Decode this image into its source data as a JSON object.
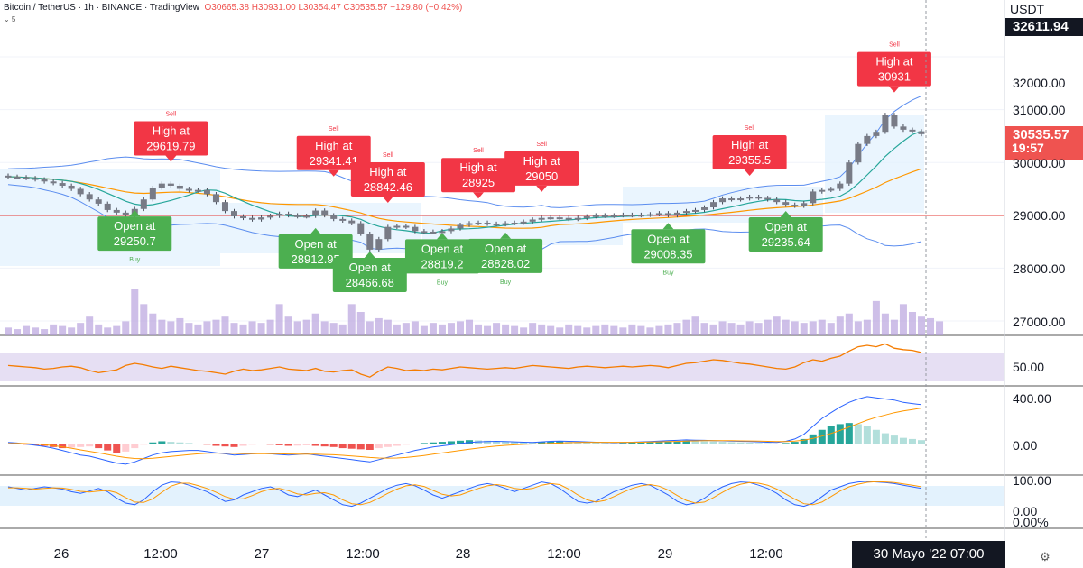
{
  "header": {
    "symbol": "Bitcoin / TetherUS · 1h · BINANCE · TradingView",
    "ohlc_label": "O30665.38 H30931.00 L30354.47 C30535.57 −129.80 (−0.42%)",
    "sub": "⌄ 5"
  },
  "axis": {
    "unit": "USDT",
    "top_price": "32611.94",
    "last_price": "30535.57",
    "countdown": "19:57",
    "price_ticks": [
      "32000.00",
      "31000.00",
      "30000.00",
      "29000.00",
      "28000.00",
      "27000.00"
    ],
    "rsi_tick": "50.00",
    "macd_ticks": [
      "400.00",
      "0.00"
    ],
    "stoch_ticks": [
      "100.00",
      "0.00",
      "0.00%"
    ],
    "x_ticks": [
      "26",
      "12:00",
      "27",
      "12:00",
      "28",
      "12:00",
      "29",
      "12:00"
    ],
    "crosshair_label": "30 Mayo '22   07:00"
  },
  "colors": {
    "up": "#26a69a",
    "down": "#ef5350",
    "neutral_candle": "#787b86",
    "sell_label": "#f23645",
    "buy_label": "#4caf50",
    "volume": "#b39ddb",
    "rsi_line": "#f57c00",
    "macd_line": "#2962ff",
    "signal_line": "#ff9800",
    "support": "#e53935",
    "band": "#5b8def"
  },
  "chart_data": {
    "type": "line",
    "ylim": [
      26700,
      32700
    ],
    "x_ticks": [
      "26",
      "12:00",
      "27",
      "12:00",
      "28",
      "12:00",
      "29",
      "12:00"
    ],
    "signals": [
      {
        "kind": "sell",
        "text": "High at",
        "value": "29619.79",
        "price": 29619.79,
        "tag": "Sell",
        "bar": 18
      },
      {
        "kind": "buy",
        "text": "Open at",
        "value": "29250.7",
        "price": 29250.7,
        "tag": "Buy",
        "bar": 14
      },
      {
        "kind": "sell",
        "text": "High at",
        "value": "29341.41",
        "price": 29341.41,
        "tag": "Sell",
        "bar": 36
      },
      {
        "kind": "buy",
        "text": "Open at",
        "value": "28912.95",
        "price": 28912.95,
        "tag": "",
        "bar": 34
      },
      {
        "kind": "sell",
        "text": "High at",
        "value": "28842.46",
        "price": 28842.46,
        "tag": "Sell",
        "bar": 42
      },
      {
        "kind": "buy",
        "text": "Open at",
        "value": "28466.68",
        "price": 28466.68,
        "tag": "",
        "bar": 40
      },
      {
        "kind": "sell",
        "text": "High at",
        "value": "28925",
        "price": 28925,
        "tag": "Sell",
        "bar": 52
      },
      {
        "kind": "buy",
        "text": "Open at",
        "value": "28819.2",
        "price": 28819.2,
        "tag": "Buy",
        "bar": 48
      },
      {
        "kind": "sell",
        "text": "High at",
        "value": "29050",
        "price": 29050,
        "tag": "Sell",
        "bar": 59
      },
      {
        "kind": "buy",
        "text": "Open at",
        "value": "28828.02",
        "price": 28828.02,
        "tag": "Buy",
        "bar": 55
      },
      {
        "kind": "buy",
        "text": "Open at",
        "value": "29008.35",
        "price": 29008.35,
        "tag": "Buy",
        "bar": 73
      },
      {
        "kind": "sell",
        "text": "High at",
        "value": "29355.5",
        "price": 29355.5,
        "tag": "Sell",
        "bar": 82
      },
      {
        "kind": "buy",
        "text": "Open at",
        "value": "29235.64",
        "price": 29235.64,
        "tag": "",
        "bar": 86
      },
      {
        "kind": "sell",
        "text": "High at",
        "value": "30931",
        "price": 30931,
        "tag": "Sell",
        "bar": 98
      }
    ],
    "support_level": 29000,
    "close_series": [
      29730,
      29720,
      29705,
      29680,
      29640,
      29610,
      29560,
      29500,
      29400,
      29300,
      29220,
      29100,
      29050,
      29000,
      29120,
      29300,
      29520,
      29600,
      29560,
      29500,
      29470,
      29480,
      29400,
      29250,
      29080,
      28980,
      28950,
      28920,
      28960,
      28990,
      29030,
      29000,
      28980,
      28990,
      29090,
      29000,
      28930,
      28900,
      28850,
      28650,
      28350,
      28550,
      28780,
      28800,
      28780,
      28700,
      28680,
      28690,
      28700,
      28750,
      28820,
      28850,
      28860,
      28840,
      28830,
      28850,
      28860,
      28880,
      28920,
      28950,
      28960,
      28950,
      28930,
      28950,
      28980,
      29000,
      28990,
      29000,
      29010,
      29000,
      29010,
      29020,
      29040,
      29000,
      29050,
      29080,
      29100,
      29150,
      29250,
      29320,
      29300,
      29320,
      29350,
      29330,
      29300,
      29250,
      29200,
      29180,
      29230,
      29450,
      29480,
      29500,
      29600,
      30000,
      30350,
      30500,
      30580,
      30900,
      30680,
      30620,
      30590,
      30535.57
    ],
    "volume": [
      5,
      4,
      6,
      5,
      4,
      7,
      6,
      5,
      8,
      12,
      7,
      5,
      6,
      9,
      30,
      20,
      14,
      10,
      9,
      11,
      8,
      7,
      9,
      10,
      12,
      8,
      7,
      9,
      8,
      10,
      20,
      12,
      9,
      10,
      14,
      9,
      8,
      7,
      20,
      15,
      9,
      11,
      10,
      7,
      8,
      9,
      6,
      8,
      7,
      8,
      9,
      10,
      7,
      6,
      8,
      7,
      6,
      5,
      8,
      7,
      6,
      5,
      7,
      6,
      5,
      6,
      7,
      6,
      5,
      7,
      6,
      5,
      6,
      7,
      8,
      10,
      12,
      8,
      7,
      9,
      8,
      7,
      9,
      8,
      10,
      12,
      10,
      9,
      8,
      9,
      10,
      8,
      12,
      14,
      9,
      10,
      22,
      14,
      10,
      20,
      15,
      12,
      11,
      9
    ],
    "rsi": [
      52,
      51,
      50,
      49,
      47,
      48,
      50,
      51,
      49,
      45,
      42,
      44,
      46,
      52,
      55,
      53,
      50,
      48,
      51,
      49,
      47,
      45,
      44,
      42,
      40,
      44,
      47,
      45,
      46,
      48,
      50,
      47,
      46,
      45,
      48,
      44,
      43,
      45,
      46,
      40,
      36,
      44,
      50,
      48,
      45,
      46,
      45,
      47,
      46,
      48,
      50,
      49,
      48,
      47,
      48,
      49,
      48,
      50,
      52,
      51,
      50,
      49,
      48,
      50,
      51,
      50,
      49,
      50,
      51,
      50,
      51,
      52,
      51,
      49,
      52,
      55,
      56,
      58,
      60,
      59,
      57,
      55,
      54,
      52,
      50,
      48,
      47,
      50,
      56,
      60,
      58,
      62,
      65,
      72,
      78,
      80,
      78,
      82,
      76,
      74,
      73,
      70
    ],
    "macd_hist": [
      0,
      -5,
      -10,
      -15,
      -20,
      -30,
      -40,
      -35,
      -30,
      -25,
      -40,
      -60,
      -80,
      -70,
      -40,
      -10,
      10,
      20,
      15,
      10,
      5,
      0,
      -10,
      -20,
      -25,
      -30,
      -20,
      -10,
      -5,
      -10,
      -15,
      -20,
      -18,
      -15,
      -20,
      -25,
      -30,
      -40,
      -45,
      -50,
      -55,
      -40,
      -30,
      -20,
      -10,
      0,
      5,
      10,
      15,
      20,
      25,
      30,
      28,
      25,
      20,
      18,
      15,
      12,
      10,
      15,
      18,
      20,
      15,
      12,
      10,
      8,
      5,
      3,
      5,
      8,
      10,
      12,
      15,
      18,
      20,
      25,
      22,
      20,
      18,
      15,
      12,
      10,
      8,
      5,
      3,
      0,
      5,
      15,
      40,
      80,
      120,
      150,
      170,
      180,
      170,
      150,
      120,
      90,
      70,
      50,
      40,
      30
    ],
    "macd_line": [
      10,
      5,
      -5,
      -15,
      -25,
      -40,
      -60,
      -80,
      -100,
      -110,
      -130,
      -150,
      -170,
      -180,
      -160,
      -130,
      -100,
      -80,
      -70,
      -65,
      -60,
      -60,
      -70,
      -80,
      -90,
      -100,
      -95,
      -90,
      -85,
      -90,
      -95,
      -100,
      -95,
      -90,
      -100,
      -110,
      -120,
      -130,
      -140,
      -150,
      -160,
      -140,
      -120,
      -100,
      -80,
      -60,
      -45,
      -30,
      -20,
      -10,
      0,
      10,
      15,
      18,
      20,
      18,
      15,
      12,
      10,
      15,
      20,
      22,
      20,
      18,
      15,
      12,
      10,
      8,
      10,
      12,
      15,
      18,
      22,
      25,
      28,
      32,
      30,
      28,
      26,
      24,
      22,
      20,
      18,
      15,
      12,
      10,
      20,
      40,
      80,
      150,
      220,
      270,
      320,
      360,
      390,
      410,
      400,
      390,
      380,
      360,
      350,
      340
    ],
    "signal_line": [
      0,
      2,
      0,
      -5,
      -10,
      -18,
      -28,
      -40,
      -55,
      -68,
      -80,
      -95,
      -110,
      -122,
      -130,
      -132,
      -128,
      -120,
      -112,
      -104,
      -96,
      -90,
      -85,
      -83,
      -84,
      -86,
      -88,
      -89,
      -89,
      -89,
      -90,
      -91,
      -92,
      -92,
      -93,
      -95,
      -98,
      -102,
      -108,
      -114,
      -121,
      -126,
      -127,
      -126,
      -121,
      -113,
      -104,
      -93,
      -82,
      -71,
      -60,
      -49,
      -39,
      -30,
      -22,
      -16,
      -11,
      -7,
      -4,
      -1,
      2,
      5,
      8,
      10,
      11,
      11,
      11,
      11,
      11,
      11,
      12,
      13,
      15,
      17,
      19,
      22,
      24,
      25,
      25,
      25,
      25,
      24,
      23,
      22,
      20,
      18,
      18,
      22,
      30,
      45,
      65,
      88,
      115,
      145,
      175,
      205,
      230,
      250,
      270,
      285,
      298,
      310
    ],
    "stoch_k": [
      75,
      70,
      65,
      70,
      75,
      72,
      68,
      60,
      55,
      62,
      70,
      60,
      40,
      25,
      20,
      35,
      60,
      80,
      90,
      88,
      80,
      70,
      60,
      45,
      30,
      35,
      50,
      60,
      70,
      75,
      65,
      50,
      45,
      55,
      65,
      50,
      35,
      20,
      15,
      25,
      40,
      55,
      70,
      80,
      85,
      78,
      65,
      50,
      40,
      50,
      60,
      70,
      80,
      85,
      80,
      70,
      60,
      70,
      80,
      90,
      85,
      70,
      50,
      30,
      25,
      30,
      45,
      60,
      70,
      80,
      85,
      80,
      65,
      50,
      30,
      20,
      25,
      40,
      60,
      75,
      85,
      90,
      88,
      80,
      70,
      55,
      35,
      20,
      15,
      25,
      45,
      65,
      75,
      85,
      90,
      92,
      90,
      88,
      85,
      80,
      75,
      70
    ],
    "stoch_d": [
      72,
      72,
      70,
      68,
      70,
      72,
      71,
      67,
      61,
      59,
      62,
      64,
      57,
      42,
      28,
      27,
      38,
      58,
      77,
      86,
      86,
      79,
      70,
      58,
      45,
      37,
      38,
      48,
      60,
      68,
      70,
      63,
      53,
      50,
      55,
      57,
      50,
      35,
      23,
      20,
      27,
      40,
      55,
      68,
      78,
      81,
      76,
      64,
      52,
      47,
      50,
      60,
      70,
      78,
      82,
      78,
      70,
      67,
      70,
      80,
      85,
      82,
      68,
      50,
      35,
      28,
      33,
      45,
      58,
      70,
      78,
      82,
      77,
      65,
      48,
      33,
      25,
      28,
      42,
      58,
      73,
      83,
      88,
      86,
      80,
      68,
      53,
      37,
      23,
      20,
      28,
      45,
      62,
      75,
      83,
      89,
      91,
      90,
      88,
      84,
      80,
      75
    ]
  }
}
